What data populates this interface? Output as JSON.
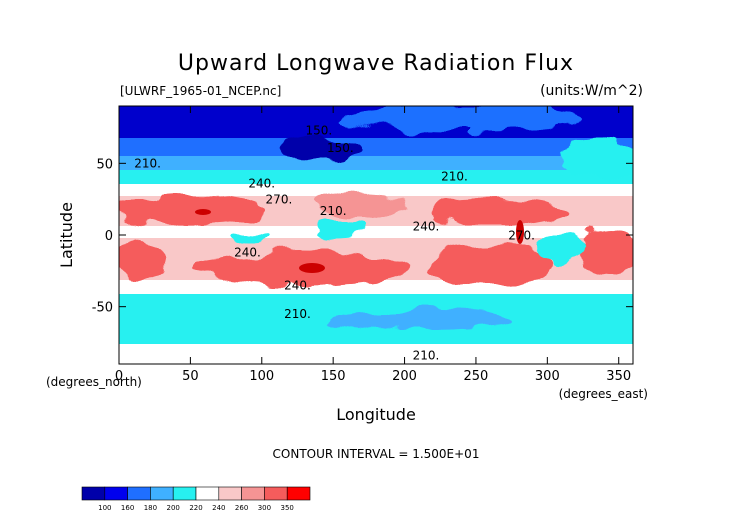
{
  "chart_data": {
    "type": "heatmap",
    "title": "Upward Longwave Radiation Flux",
    "file_label": "[ULWRF_1965-01_NCEP.nc]",
    "units_label": "(units:W/m^2)",
    "xlabel": "Longitude",
    "ylabel": "Latitude",
    "x_unit_label": "(degrees_east)",
    "y_unit_label": "(degrees_north)",
    "xlim": [
      0,
      360
    ],
    "ylim": [
      -90,
      90
    ],
    "x_ticks": [
      0,
      50,
      100,
      150,
      200,
      250,
      300,
      350
    ],
    "y_ticks": [
      -50,
      0,
      50
    ],
    "contour_interval_text": "CONTOUR INTERVAL = 1.500E+01",
    "contour_labels": [
      {
        "text": "210.",
        "lon": 20,
        "lat": 47
      },
      {
        "text": "240.",
        "lon": 100,
        "lat": 33
      },
      {
        "text": "270.",
        "lon": 112,
        "lat": 22
      },
      {
        "text": "210.",
        "lon": 150,
        "lat": 14
      },
      {
        "text": "240.",
        "lon": 215,
        "lat": 3
      },
      {
        "text": "210.",
        "lon": 235,
        "lat": 38
      },
      {
        "text": "240.",
        "lon": 90,
        "lat": -15
      },
      {
        "text": "240.",
        "lon": 125,
        "lat": -38
      },
      {
        "text": "210.",
        "lon": 125,
        "lat": -58
      },
      {
        "text": "210.",
        "lon": 215,
        "lat": -87
      },
      {
        "text": "150.",
        "lon": 140,
        "lat": 70
      },
      {
        "text": "150.",
        "lon": 155,
        "lat": 58
      },
      {
        "text": "270.",
        "lon": 282,
        "lat": -3
      }
    ],
    "colorbar": {
      "levels": [
        100,
        160,
        180,
        200,
        220,
        240,
        260,
        300,
        350
      ],
      "colors": [
        "#0000aa",
        "#0000ee",
        "#1f6fff",
        "#3fb0ff",
        "#27f0f0",
        "#ffffff",
        "#f9c8c8",
        "#f59494",
        "#f55c5c",
        "#ff0000"
      ]
    }
  }
}
